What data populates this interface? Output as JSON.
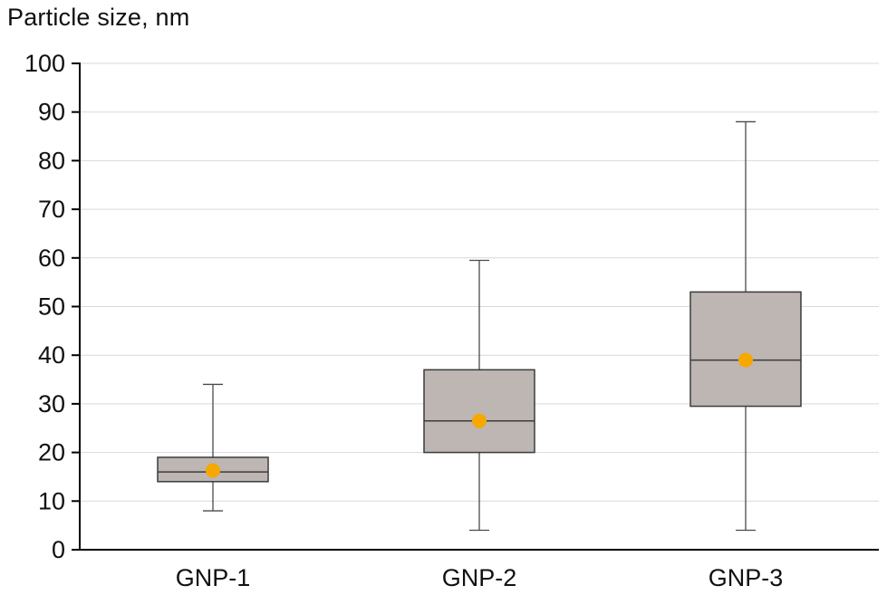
{
  "chart_data": {
    "type": "box",
    "title": "Particle size, nm",
    "categories": [
      "GNP-1",
      "GNP-2",
      "GNP-3"
    ],
    "boxes": [
      {
        "category": "GNP-1",
        "low": 8,
        "q1": 14,
        "median": 16,
        "q3": 19,
        "high": 34,
        "mean": 16.3
      },
      {
        "category": "GNP-2",
        "low": 4,
        "q1": 20,
        "median": 26.5,
        "q3": 37,
        "high": 59.5,
        "mean": 26.5
      },
      {
        "category": "GNP-3",
        "low": 4,
        "q1": 29.5,
        "median": 39,
        "q3": 53,
        "high": 88,
        "mean": 39
      }
    ],
    "ylim": [
      0,
      100
    ],
    "ytick_step": 10,
    "xlabel": "",
    "ylabel": "",
    "grid": true,
    "legend": "none"
  },
  "colors": {
    "box_fill": "#bdb6b3",
    "box_border": "#3b3b3b",
    "whisker": "#4a4a4a",
    "mean_dot": "#f6a800",
    "grid": "#d9d9d9",
    "axis": "#000000",
    "text": "#111111"
  }
}
